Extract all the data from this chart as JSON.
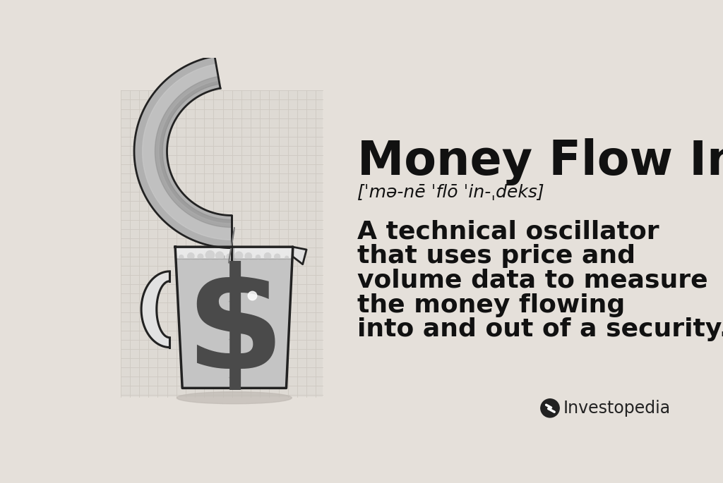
{
  "bg_color": "#e5e0da",
  "grid_color": "#cec9c2",
  "title": "Money Flow Index",
  "phonetic": "[ˈmə-nē ˈflō ˈin-ˌdeks]",
  "definition_lines": [
    "A technical oscillator",
    "that uses price and",
    "volume data to measure",
    "the money flowing",
    "into and out of a security."
  ],
  "investopedia_text": "Investopedia",
  "title_fontsize": 48,
  "phonetic_fontsize": 18,
  "definition_fontsize": 26,
  "text_color": "#111111",
  "dark_gray": "#2a2a2a",
  "faucet_fill": "#b0b0b0",
  "faucet_outline": "#222222",
  "faucet_highlight": "#d0d0d0",
  "faucet_shadow": "#888888",
  "cup_fill": "#e0e0e0",
  "cup_outline": "#222222",
  "water_fill": "#b8b8b8",
  "dollar_color": "#4a4a4a",
  "shadow_color": "#c0bab4",
  "investopedia_color": "#222222"
}
